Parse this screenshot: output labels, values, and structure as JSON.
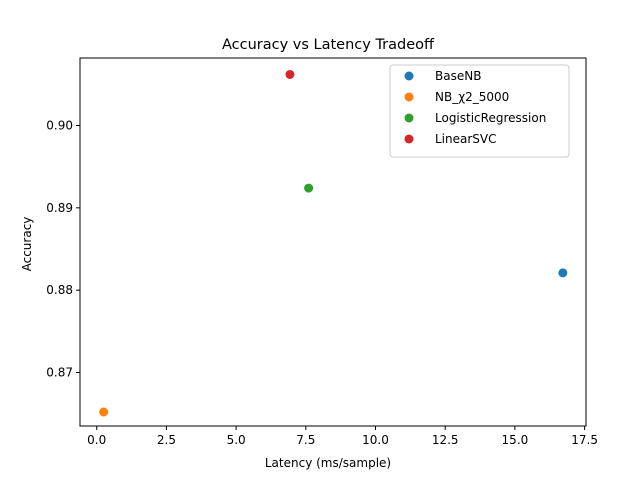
{
  "chart_data": {
    "type": "scatter",
    "title": "Accuracy vs Latency Tradeoff",
    "xlabel": "Latency (ms/sample)",
    "ylabel": "Accuracy",
    "xlim": [
      -0.6,
      17.55
    ],
    "ylim": [
      0.8635,
      0.9082
    ],
    "xticks": [
      0.0,
      2.5,
      5.0,
      7.5,
      10.0,
      12.5,
      15.0,
      17.5
    ],
    "xtick_labels": [
      "0.0",
      "2.5",
      "5.0",
      "7.5",
      "10.0",
      "12.5",
      "15.0",
      "17.5"
    ],
    "yticks": [
      0.87,
      0.88,
      0.89,
      0.9
    ],
    "ytick_labels": [
      "0.87",
      "0.88",
      "0.89",
      "0.90"
    ],
    "grid": false,
    "legend_position": "top-right",
    "series": [
      {
        "name": "BaseNB",
        "color": "#1f77b4",
        "points": [
          {
            "x": 16.72,
            "y": 0.8821
          }
        ]
      },
      {
        "name": "NB_χ2_5000",
        "color": "#ff7f0e",
        "points": [
          {
            "x": 0.25,
            "y": 0.8652
          }
        ]
      },
      {
        "name": "LogisticRegression",
        "color": "#2ca02c",
        "points": [
          {
            "x": 7.6,
            "y": 0.8924
          }
        ]
      },
      {
        "name": "LinearSVC",
        "color": "#d62728",
        "points": [
          {
            "x": 6.93,
            "y": 0.9062
          }
        ]
      }
    ]
  }
}
